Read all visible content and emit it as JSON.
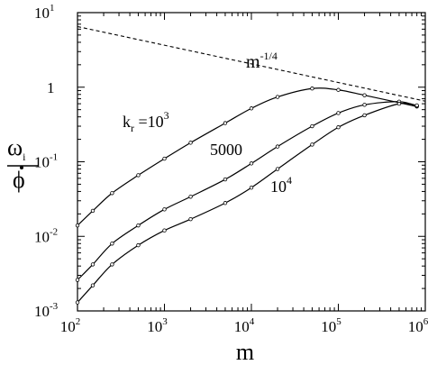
{
  "chart_data": {
    "type": "line",
    "title": "",
    "xlabel": "m",
    "ylabel": {
      "numerator": "ω",
      "numerator_sub": "i",
      "denominator": "ϕ"
    },
    "xscale": "log",
    "yscale": "log",
    "xlim": [
      100,
      1000000
    ],
    "ylim": [
      0.001,
      10
    ],
    "x_ticks": [
      {
        "base": "10",
        "exp": "2",
        "value": 100
      },
      {
        "base": "10",
        "exp": "3",
        "value": 1000
      },
      {
        "base": "10",
        "exp": "4",
        "value": 10000
      },
      {
        "base": "10",
        "exp": "5",
        "value": 100000
      },
      {
        "base": "10",
        "exp": "6",
        "value": 1000000
      }
    ],
    "y_ticks": [
      {
        "base": "10",
        "exp": "-3",
        "value": 0.001
      },
      {
        "base": "10",
        "exp": "-2",
        "value": 0.01
      },
      {
        "base": "10",
        "exp": "-1",
        "value": 0.1
      },
      {
        "base": "1",
        "exp": "",
        "value": 1
      },
      {
        "base": "10",
        "exp": "1",
        "value": 10
      }
    ],
    "reference_line": {
      "label_base": "m",
      "label_exp": "-1/4",
      "x": [
        100,
        1000000
      ],
      "y": [
        6.5,
        0.65
      ]
    },
    "series": [
      {
        "name": "k_r = 10^3",
        "x": [
          100,
          150,
          250,
          500,
          1000,
          2000,
          5000,
          10000,
          20000,
          50000,
          100000,
          200000,
          500000,
          800000
        ],
        "y": [
          0.014,
          0.022,
          0.038,
          0.066,
          0.11,
          0.18,
          0.33,
          0.52,
          0.74,
          0.96,
          0.92,
          0.78,
          0.62,
          0.55
        ]
      },
      {
        "name": "5000",
        "x": [
          100,
          150,
          250,
          500,
          1000,
          2000,
          5000,
          10000,
          20000,
          50000,
          100000,
          200000,
          500000,
          800000
        ],
        "y": [
          0.0026,
          0.0042,
          0.008,
          0.014,
          0.023,
          0.034,
          0.058,
          0.095,
          0.16,
          0.3,
          0.45,
          0.58,
          0.64,
          0.56
        ]
      },
      {
        "name": "10^4",
        "x": [
          100,
          150,
          250,
          500,
          1000,
          2000,
          5000,
          10000,
          20000,
          50000,
          100000,
          200000,
          500000,
          800000
        ],
        "y": [
          0.0013,
          0.0022,
          0.0042,
          0.0076,
          0.012,
          0.017,
          0.028,
          0.045,
          0.08,
          0.17,
          0.29,
          0.42,
          0.6,
          0.57
        ]
      }
    ],
    "labels": {
      "kr_k": "k",
      "kr_r": "r",
      "kr_eq": " =10",
      "kr_exp": "3",
      "s2": "5000",
      "s3_base": "10",
      "s3_exp": "4"
    },
    "grid": false,
    "legend": "none"
  }
}
